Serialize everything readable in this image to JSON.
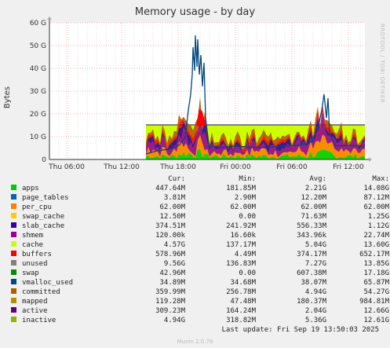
{
  "title": "Memory usage - by day",
  "side_label": "RRDTOOL / TOBI OETIKER",
  "y_axis_label": "Bytes",
  "y_ticks": [
    "0",
    "10 G",
    "20 G",
    "30 G",
    "40 G",
    "50 G",
    "60 G"
  ],
  "x_ticks": [
    "Thu 06:00",
    "Thu 12:00",
    "Thu 18:00",
    "Fri 00:00",
    "Fri 06:00",
    "Fri 12:00"
  ],
  "legend_headers": {
    "cur": "Cur:",
    "min": "Min:",
    "avg": "Avg:",
    "max": "Max:"
  },
  "legend": [
    {
      "name": "apps",
      "color": "#00cc00",
      "cur": "447.64M",
      "min": "181.85M",
      "avg": "2.21G",
      "max": "14.08G"
    },
    {
      "name": "page_tables",
      "color": "#0066b3",
      "cur": "3.81M",
      "min": "2.90M",
      "avg": "12.20M",
      "max": "87.12M"
    },
    {
      "name": "per_cpu",
      "color": "#ff8000",
      "cur": "62.00M",
      "min": "62.00M",
      "avg": "62.00M",
      "max": "62.00M"
    },
    {
      "name": "swap_cache",
      "color": "#ffcc00",
      "cur": "12.50M",
      "min": "0.00",
      "avg": "71.63M",
      "max": "1.25G"
    },
    {
      "name": "slab_cache",
      "color": "#330099",
      "cur": "374.51M",
      "min": "241.92M",
      "avg": "556.33M",
      "max": "1.12G"
    },
    {
      "name": "shmem",
      "color": "#990099",
      "cur": "120.00k",
      "min": "16.60k",
      "avg": "343.96k",
      "max": "22.74M"
    },
    {
      "name": "cache",
      "color": "#ccff00",
      "cur": "4.57G",
      "min": "137.17M",
      "avg": "5.04G",
      "max": "13.60G"
    },
    {
      "name": "buffers",
      "color": "#ff0000",
      "cur": "578.96M",
      "min": "4.49M",
      "avg": "374.17M",
      "max": "652.17M"
    },
    {
      "name": "unused",
      "color": "#808080",
      "cur": "9.56G",
      "min": "136.83M",
      "avg": "7.27G",
      "max": "13.85G"
    },
    {
      "name": "swap",
      "color": "#008f00",
      "cur": "42.96M",
      "min": "0.00",
      "avg": "607.38M",
      "max": "17.18G"
    },
    {
      "name": "vmalloc_used",
      "color": "#00487d",
      "cur": "34.89M",
      "min": "34.68M",
      "avg": "38.07M",
      "max": "65.87M"
    },
    {
      "name": "committed",
      "color": "#b35a00",
      "cur": "359.99M",
      "min": "256.78M",
      "avg": "4.94G",
      "max": "54.27G"
    },
    {
      "name": "mapped",
      "color": "#b38f00",
      "cur": "119.28M",
      "min": "47.48M",
      "avg": "180.37M",
      "max": "984.81M"
    },
    {
      "name": "active",
      "color": "#6b006b",
      "cur": "309.23M",
      "min": "164.24M",
      "avg": "2.04G",
      "max": "12.66G"
    },
    {
      "name": "inactive",
      "color": "#8fb300",
      "cur": "4.94G",
      "min": "318.82M",
      "avg": "5.36G",
      "max": "12.61G"
    }
  ],
  "last_update": "Last update: Fri Sep 19 13:50:03 2025",
  "footer": "Munin 2.0.76"
}
